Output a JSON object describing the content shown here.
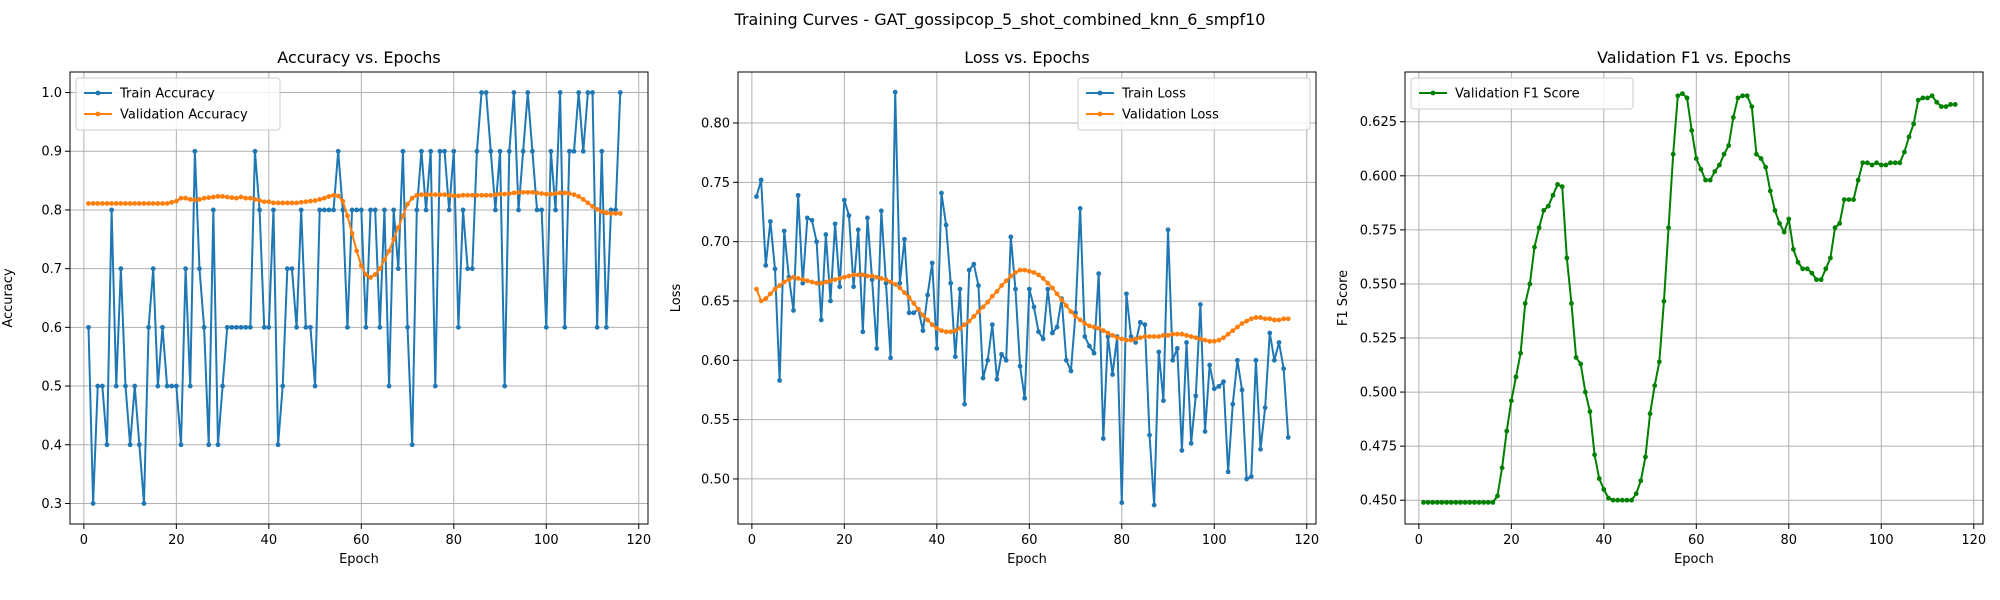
{
  "suptitle": "Training Curves - GAT_gossipcop_5_shot_combined_knn_6_smpf10",
  "chart_data": [
    {
      "type": "line",
      "title": "Accuracy vs. Epochs",
      "xlabel": "Epoch",
      "ylabel": "Accuracy",
      "xlim": [
        -3,
        122
      ],
      "ylim": [
        0.265,
        1.035
      ],
      "xticks": [
        0,
        20,
        40,
        60,
        80,
        100,
        120
      ],
      "yticks": [
        0.3,
        0.4,
        0.5,
        0.6,
        0.7,
        0.8,
        0.9,
        1.0
      ],
      "ytick_labels": [
        "0.3",
        "0.4",
        "0.5",
        "0.6",
        "0.7",
        "0.8",
        "0.9",
        "1.0"
      ],
      "grid": true,
      "legend_position": "upper-left",
      "series": [
        {
          "name": "Train Accuracy",
          "color": "#1f77b4",
          "x_start": 1,
          "values": [
            0.6,
            0.3,
            0.5,
            0.5,
            0.4,
            0.8,
            0.5,
            0.7,
            0.5,
            0.4,
            0.5,
            0.4,
            0.3,
            0.6,
            0.7,
            0.5,
            0.6,
            0.5,
            0.5,
            0.5,
            0.4,
            0.7,
            0.5,
            0.9,
            0.7,
            0.6,
            0.4,
            0.8,
            0.4,
            0.5,
            0.6,
            0.6,
            0.6,
            0.6,
            0.6,
            0.6,
            0.9,
            0.8,
            0.6,
            0.6,
            0.8,
            0.4,
            0.5,
            0.7,
            0.7,
            0.6,
            0.8,
            0.6,
            0.6,
            0.5,
            0.8,
            0.8,
            0.8,
            0.8,
            0.9,
            0.8,
            0.6,
            0.8,
            0.8,
            0.8,
            0.6,
            0.8,
            0.8,
            0.6,
            0.8,
            0.5,
            0.8,
            0.7,
            0.9,
            0.6,
            0.4,
            0.8,
            0.9,
            0.8,
            0.9,
            0.5,
            0.9,
            0.9,
            0.8,
            0.9,
            0.6,
            0.8,
            0.7,
            0.7,
            0.9,
            1.0,
            1.0,
            0.9,
            0.8,
            0.9,
            0.5,
            0.9,
            1.0,
            0.8,
            0.9,
            1.0,
            0.9,
            0.8,
            0.8,
            0.6,
            0.9,
            0.8,
            1.0,
            0.6,
            0.9,
            0.9,
            1.0,
            0.9,
            1.0,
            1.0,
            0.6,
            0.9,
            0.6,
            0.8,
            0.8,
            1.0
          ]
        },
        {
          "name": "Validation Accuracy",
          "color": "#ff7f0e",
          "x_start": 1,
          "values": [
            0.811,
            0.811,
            0.811,
            0.811,
            0.811,
            0.811,
            0.811,
            0.811,
            0.811,
            0.811,
            0.811,
            0.811,
            0.811,
            0.811,
            0.811,
            0.811,
            0.811,
            0.811,
            0.813,
            0.815,
            0.82,
            0.82,
            0.818,
            0.817,
            0.818,
            0.82,
            0.821,
            0.822,
            0.823,
            0.823,
            0.822,
            0.821,
            0.82,
            0.822,
            0.82,
            0.82,
            0.818,
            0.816,
            0.814,
            0.814,
            0.812,
            0.812,
            0.812,
            0.812,
            0.812,
            0.812,
            0.813,
            0.814,
            0.815,
            0.816,
            0.818,
            0.82,
            0.823,
            0.825,
            0.824,
            0.815,
            0.79,
            0.76,
            0.73,
            0.705,
            0.69,
            0.685,
            0.69,
            0.7,
            0.715,
            0.73,
            0.75,
            0.77,
            0.79,
            0.81,
            0.82,
            0.825,
            0.826,
            0.826,
            0.826,
            0.826,
            0.826,
            0.826,
            0.825,
            0.824,
            0.824,
            0.825,
            0.825,
            0.825,
            0.825,
            0.825,
            0.825,
            0.825,
            0.826,
            0.827,
            0.827,
            0.828,
            0.829,
            0.83,
            0.83,
            0.83,
            0.83,
            0.829,
            0.828,
            0.827,
            0.827,
            0.828,
            0.829,
            0.829,
            0.828,
            0.826,
            0.823,
            0.818,
            0.812,
            0.806,
            0.801,
            0.797,
            0.795,
            0.794,
            0.794,
            0.794
          ]
        }
      ]
    },
    {
      "type": "line",
      "title": "Loss vs. Epochs",
      "xlabel": "Epoch",
      "ylabel": "Loss",
      "xlim": [
        -3,
        122
      ],
      "ylim": [
        0.462,
        0.843
      ],
      "xticks": [
        0,
        20,
        40,
        60,
        80,
        100,
        120
      ],
      "yticks": [
        0.5,
        0.55,
        0.6,
        0.65,
        0.7,
        0.75,
        0.8
      ],
      "ytick_labels": [
        "0.50",
        "0.55",
        "0.60",
        "0.65",
        "0.70",
        "0.75",
        "0.80"
      ],
      "grid": true,
      "legend_position": "upper-right",
      "series": [
        {
          "name": "Train Loss",
          "color": "#1f77b4",
          "x_start": 1,
          "values": [
            0.738,
            0.752,
            0.68,
            0.717,
            0.677,
            0.583,
            0.709,
            0.67,
            0.642,
            0.739,
            0.665,
            0.72,
            0.718,
            0.7,
            0.634,
            0.706,
            0.65,
            0.715,
            0.662,
            0.735,
            0.722,
            0.662,
            0.71,
            0.624,
            0.72,
            0.668,
            0.61,
            0.726,
            0.665,
            0.602,
            0.826,
            0.665,
            0.702,
            0.64,
            0.64,
            0.643,
            0.625,
            0.655,
            0.682,
            0.61,
            0.741,
            0.714,
            0.665,
            0.603,
            0.66,
            0.563,
            0.676,
            0.681,
            0.663,
            0.585,
            0.6,
            0.63,
            0.584,
            0.605,
            0.6,
            0.704,
            0.66,
            0.595,
            0.568,
            0.66,
            0.645,
            0.624,
            0.618,
            0.66,
            0.623,
            0.628,
            0.652,
            0.6,
            0.591,
            0.64,
            0.728,
            0.62,
            0.612,
            0.606,
            0.673,
            0.534,
            0.62,
            0.588,
            0.62,
            0.48,
            0.656,
            0.62,
            0.615,
            0.632,
            0.63,
            0.537,
            0.478,
            0.607,
            0.566,
            0.71,
            0.6,
            0.61,
            0.524,
            0.615,
            0.53,
            0.57,
            0.647,
            0.54,
            0.596,
            0.576,
            0.578,
            0.582,
            0.506,
            0.563,
            0.6,
            0.575,
            0.5,
            0.502,
            0.6,
            0.525,
            0.56,
            0.623,
            0.6,
            0.615,
            0.593,
            0.535
          ]
        },
        {
          "name": "Validation Loss",
          "color": "#ff7f0e",
          "x_start": 1,
          "values": [
            0.66,
            0.65,
            0.652,
            0.656,
            0.66,
            0.663,
            0.666,
            0.668,
            0.67,
            0.669,
            0.668,
            0.667,
            0.666,
            0.665,
            0.665,
            0.666,
            0.667,
            0.668,
            0.669,
            0.67,
            0.671,
            0.672,
            0.672,
            0.672,
            0.671,
            0.671,
            0.67,
            0.669,
            0.668,
            0.666,
            0.664,
            0.661,
            0.657,
            0.653,
            0.648,
            0.643,
            0.638,
            0.634,
            0.63,
            0.627,
            0.625,
            0.624,
            0.624,
            0.625,
            0.627,
            0.63,
            0.633,
            0.637,
            0.641,
            0.645,
            0.649,
            0.654,
            0.658,
            0.663,
            0.667,
            0.671,
            0.674,
            0.676,
            0.676,
            0.675,
            0.674,
            0.672,
            0.669,
            0.665,
            0.661,
            0.656,
            0.651,
            0.646,
            0.641,
            0.637,
            0.634,
            0.631,
            0.629,
            0.628,
            0.627,
            0.625,
            0.623,
            0.621,
            0.619,
            0.618,
            0.617,
            0.617,
            0.618,
            0.619,
            0.62,
            0.62,
            0.62,
            0.62,
            0.621,
            0.621,
            0.622,
            0.622,
            0.622,
            0.621,
            0.62,
            0.619,
            0.618,
            0.617,
            0.616,
            0.616,
            0.617,
            0.619,
            0.622,
            0.625,
            0.628,
            0.631,
            0.633,
            0.635,
            0.636,
            0.636,
            0.635,
            0.635,
            0.634,
            0.634,
            0.635,
            0.635
          ]
        }
      ]
    },
    {
      "type": "line",
      "title": "Validation F1 vs. Epochs",
      "xlabel": "Epoch",
      "ylabel": "F1 Score",
      "xlim": [
        -3,
        122
      ],
      "ylim": [
        0.439,
        0.648
      ],
      "xticks": [
        0,
        20,
        40,
        60,
        80,
        100,
        120
      ],
      "yticks": [
        0.45,
        0.475,
        0.5,
        0.525,
        0.55,
        0.575,
        0.6,
        0.625
      ],
      "ytick_labels": [
        "0.450",
        "0.475",
        "0.500",
        "0.525",
        "0.550",
        "0.575",
        "0.600",
        "0.625"
      ],
      "grid": true,
      "legend_position": "upper-left",
      "series": [
        {
          "name": "Validation F1 Score",
          "color": "#008000",
          "x_start": 1,
          "values": [
            0.449,
            0.449,
            0.449,
            0.449,
            0.449,
            0.449,
            0.449,
            0.449,
            0.449,
            0.449,
            0.449,
            0.449,
            0.449,
            0.449,
            0.449,
            0.449,
            0.452,
            0.465,
            0.482,
            0.496,
            0.507,
            0.518,
            0.541,
            0.55,
            0.567,
            0.576,
            0.584,
            0.586,
            0.591,
            0.596,
            0.595,
            0.562,
            0.541,
            0.516,
            0.513,
            0.5,
            0.491,
            0.471,
            0.46,
            0.455,
            0.451,
            0.45,
            0.45,
            0.45,
            0.45,
            0.45,
            0.453,
            0.459,
            0.47,
            0.49,
            0.503,
            0.514,
            0.542,
            0.576,
            0.61,
            0.637,
            0.638,
            0.636,
            0.621,
            0.608,
            0.603,
            0.598,
            0.598,
            0.602,
            0.605,
            0.61,
            0.614,
            0.627,
            0.636,
            0.637,
            0.637,
            0.632,
            0.61,
            0.608,
            0.604,
            0.593,
            0.584,
            0.578,
            0.574,
            0.58,
            0.566,
            0.56,
            0.557,
            0.557,
            0.555,
            0.552,
            0.552,
            0.557,
            0.562,
            0.576,
            0.578,
            0.589,
            0.589,
            0.589,
            0.598,
            0.606,
            0.606,
            0.605,
            0.606,
            0.605,
            0.605,
            0.606,
            0.606,
            0.606,
            0.611,
            0.618,
            0.624,
            0.635,
            0.636,
            0.636,
            0.637,
            0.634,
            0.632,
            0.632,
            0.633,
            0.633
          ]
        }
      ]
    }
  ]
}
